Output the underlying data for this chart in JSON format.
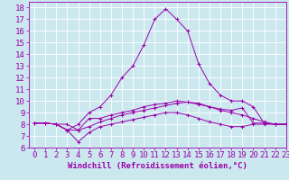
{
  "xlabel": "Windchill (Refroidissement éolien,°C)",
  "xlim": [
    -0.5,
    23
  ],
  "ylim": [
    6,
    18.5
  ],
  "yticks": [
    6,
    7,
    8,
    9,
    10,
    11,
    12,
    13,
    14,
    15,
    16,
    17,
    18
  ],
  "xticks": [
    0,
    1,
    2,
    3,
    4,
    5,
    6,
    7,
    8,
    9,
    10,
    11,
    12,
    13,
    14,
    15,
    16,
    17,
    18,
    19,
    20,
    21,
    22,
    23
  ],
  "background_color": "#cce8ef",
  "line_color": "#9900aa",
  "grid_color": "#ffffff",
  "lines": [
    [
      8.1,
      8.1,
      8.0,
      8.0,
      7.5,
      8.5,
      8.5,
      8.8,
      9.0,
      9.2,
      9.5,
      9.7,
      9.8,
      10.0,
      9.9,
      9.7,
      9.5,
      9.3,
      9.2,
      9.4,
      8.1,
      8.1,
      8.0,
      8.0
    ],
    [
      8.1,
      8.1,
      8.0,
      7.5,
      8.0,
      9.0,
      9.5,
      10.5,
      12.0,
      13.0,
      14.8,
      17.0,
      17.9,
      17.0,
      16.0,
      13.2,
      11.5,
      10.5,
      10.0,
      10.0,
      9.5,
      8.1,
      8.0,
      8.0
    ],
    [
      8.1,
      8.1,
      8.0,
      7.5,
      7.5,
      7.8,
      8.2,
      8.5,
      8.8,
      9.0,
      9.2,
      9.4,
      9.6,
      9.8,
      9.9,
      9.8,
      9.5,
      9.2,
      9.0,
      8.8,
      8.5,
      8.2,
      8.0,
      8.0
    ],
    [
      8.1,
      8.1,
      8.0,
      7.5,
      6.5,
      7.3,
      7.8,
      8.0,
      8.2,
      8.4,
      8.6,
      8.8,
      9.0,
      9.0,
      8.8,
      8.5,
      8.2,
      8.0,
      7.8,
      7.8,
      8.0,
      8.0,
      8.0,
      8.0
    ]
  ],
  "tick_fontsize": 6.5,
  "xlabel_fontsize": 6.5
}
